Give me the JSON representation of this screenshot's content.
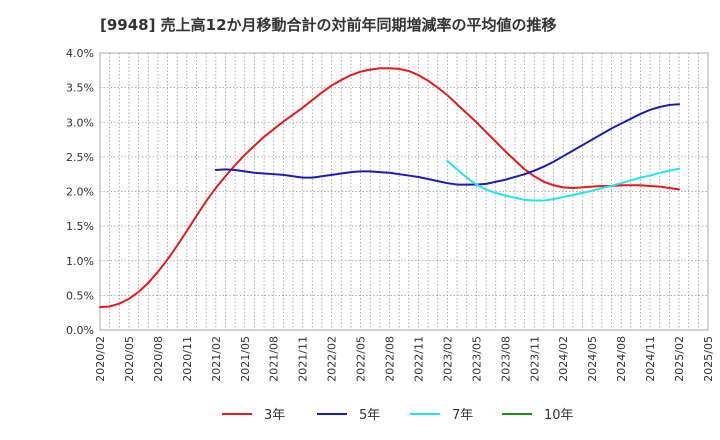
{
  "chart_data": {
    "type": "line",
    "title": "[9948]  売上高12か月移動合計の対前年同期増減率の平均値の推移",
    "xlabel": "",
    "ylabel": "",
    "x_ticks": [
      "2020/02",
      "2020/05",
      "2020/08",
      "2020/11",
      "2021/02",
      "2021/05",
      "2021/08",
      "2021/11",
      "2022/02",
      "2022/05",
      "2022/08",
      "2022/11",
      "2023/02",
      "2023/05",
      "2023/08",
      "2023/11",
      "2024/02",
      "2024/05",
      "2024/08",
      "2024/11",
      "2025/02",
      "2025/05"
    ],
    "y_ticks": [
      "0.0%",
      "0.5%",
      "1.0%",
      "1.5%",
      "2.0%",
      "2.5%",
      "3.0%",
      "3.5%",
      "4.0%"
    ],
    "ylim": [
      0,
      4.0
    ],
    "grid": true,
    "legend_position": "bottom",
    "series": [
      {
        "name": "3年",
        "color": "#e8191a",
        "points": [
          [
            "2020/02",
            0.33
          ],
          [
            "2020/03",
            0.34
          ],
          [
            "2020/04",
            0.38
          ],
          [
            "2020/05",
            0.45
          ],
          [
            "2020/06",
            0.55
          ],
          [
            "2020/07",
            0.68
          ],
          [
            "2020/08",
            0.84
          ],
          [
            "2020/09",
            1.02
          ],
          [
            "2020/10",
            1.22
          ],
          [
            "2020/11",
            1.43
          ],
          [
            "2020/12",
            1.65
          ],
          [
            "2021/01",
            1.86
          ],
          [
            "2021/02",
            2.05
          ],
          [
            "2021/03",
            2.22
          ],
          [
            "2021/04",
            2.38
          ],
          [
            "2021/05",
            2.53
          ],
          [
            "2021/06",
            2.66
          ],
          [
            "2021/07",
            2.79
          ],
          [
            "2021/08",
            2.9
          ],
          [
            "2021/09",
            3.01
          ],
          [
            "2021/10",
            3.11
          ],
          [
            "2021/11",
            3.21
          ],
          [
            "2021/12",
            3.32
          ],
          [
            "2022/01",
            3.43
          ],
          [
            "2022/02",
            3.53
          ],
          [
            "2022/03",
            3.61
          ],
          [
            "2022/04",
            3.68
          ],
          [
            "2022/05",
            3.73
          ],
          [
            "2022/06",
            3.76
          ],
          [
            "2022/07",
            3.78
          ],
          [
            "2022/08",
            3.78
          ],
          [
            "2022/09",
            3.77
          ],
          [
            "2022/10",
            3.74
          ],
          [
            "2022/11",
            3.68
          ],
          [
            "2022/12",
            3.6
          ],
          [
            "2023/01",
            3.5
          ],
          [
            "2023/02",
            3.39
          ],
          [
            "2023/03",
            3.26
          ],
          [
            "2023/04",
            3.13
          ],
          [
            "2023/05",
            3.0
          ],
          [
            "2023/06",
            2.86
          ],
          [
            "2023/07",
            2.72
          ],
          [
            "2023/08",
            2.58
          ],
          [
            "2023/09",
            2.45
          ],
          [
            "2023/10",
            2.32
          ],
          [
            "2023/11",
            2.22
          ],
          [
            "2023/12",
            2.14
          ],
          [
            "2024/01",
            2.09
          ],
          [
            "2024/02",
            2.06
          ],
          [
            "2024/03",
            2.05
          ],
          [
            "2024/04",
            2.06
          ],
          [
            "2024/05",
            2.07
          ],
          [
            "2024/06",
            2.08
          ],
          [
            "2024/07",
            2.08
          ],
          [
            "2024/08",
            2.09
          ],
          [
            "2024/09",
            2.09
          ],
          [
            "2024/10",
            2.09
          ],
          [
            "2024/11",
            2.08
          ],
          [
            "2024/12",
            2.07
          ],
          [
            "2025/01",
            2.05
          ],
          [
            "2025/02",
            2.03
          ]
        ]
      },
      {
        "name": "5年",
        "color": "#1c1cb4",
        "points": [
          [
            "2021/02",
            2.31
          ],
          [
            "2021/03",
            2.32
          ],
          [
            "2021/04",
            2.31
          ],
          [
            "2021/05",
            2.29
          ],
          [
            "2021/06",
            2.27
          ],
          [
            "2021/07",
            2.26
          ],
          [
            "2021/08",
            2.25
          ],
          [
            "2021/09",
            2.24
          ],
          [
            "2021/10",
            2.22
          ],
          [
            "2021/11",
            2.2
          ],
          [
            "2021/12",
            2.2
          ],
          [
            "2022/01",
            2.22
          ],
          [
            "2022/02",
            2.24
          ],
          [
            "2022/03",
            2.26
          ],
          [
            "2022/04",
            2.28
          ],
          [
            "2022/05",
            2.29
          ],
          [
            "2022/06",
            2.29
          ],
          [
            "2022/07",
            2.28
          ],
          [
            "2022/08",
            2.27
          ],
          [
            "2022/09",
            2.25
          ],
          [
            "2022/10",
            2.23
          ],
          [
            "2022/11",
            2.21
          ],
          [
            "2022/12",
            2.18
          ],
          [
            "2023/01",
            2.15
          ],
          [
            "2023/02",
            2.12
          ],
          [
            "2023/03",
            2.1
          ],
          [
            "2023/04",
            2.1
          ],
          [
            "2023/05",
            2.1
          ],
          [
            "2023/06",
            2.11
          ],
          [
            "2023/07",
            2.14
          ],
          [
            "2023/08",
            2.17
          ],
          [
            "2023/09",
            2.21
          ],
          [
            "2023/10",
            2.25
          ],
          [
            "2023/11",
            2.3
          ],
          [
            "2023/12",
            2.36
          ],
          [
            "2024/01",
            2.43
          ],
          [
            "2024/02",
            2.51
          ],
          [
            "2024/03",
            2.59
          ],
          [
            "2024/04",
            2.67
          ],
          [
            "2024/05",
            2.75
          ],
          [
            "2024/06",
            2.83
          ],
          [
            "2024/07",
            2.91
          ],
          [
            "2024/08",
            2.98
          ],
          [
            "2024/09",
            3.05
          ],
          [
            "2024/10",
            3.12
          ],
          [
            "2024/11",
            3.18
          ],
          [
            "2024/12",
            3.22
          ],
          [
            "2025/01",
            3.25
          ],
          [
            "2025/02",
            3.26
          ]
        ]
      },
      {
        "name": "7年",
        "color": "#22e6e6",
        "points": [
          [
            "2023/02",
            2.44
          ],
          [
            "2023/03",
            2.32
          ],
          [
            "2023/04",
            2.2
          ],
          [
            "2023/05",
            2.1
          ],
          [
            "2023/06",
            2.03
          ],
          [
            "2023/07",
            1.98
          ],
          [
            "2023/08",
            1.94
          ],
          [
            "2023/09",
            1.91
          ],
          [
            "2023/10",
            1.88
          ],
          [
            "2023/11",
            1.87
          ],
          [
            "2023/12",
            1.87
          ],
          [
            "2024/01",
            1.89
          ],
          [
            "2024/02",
            1.92
          ],
          [
            "2024/03",
            1.95
          ],
          [
            "2024/04",
            1.98
          ],
          [
            "2024/05",
            2.01
          ],
          [
            "2024/06",
            2.05
          ],
          [
            "2024/07",
            2.08
          ],
          [
            "2024/08",
            2.12
          ],
          [
            "2024/09",
            2.16
          ],
          [
            "2024/10",
            2.2
          ],
          [
            "2024/11",
            2.23
          ],
          [
            "2024/12",
            2.27
          ],
          [
            "2025/01",
            2.3
          ],
          [
            "2025/02",
            2.33
          ]
        ]
      },
      {
        "name": "10年",
        "color": "#1e8c1e",
        "points": []
      }
    ]
  }
}
